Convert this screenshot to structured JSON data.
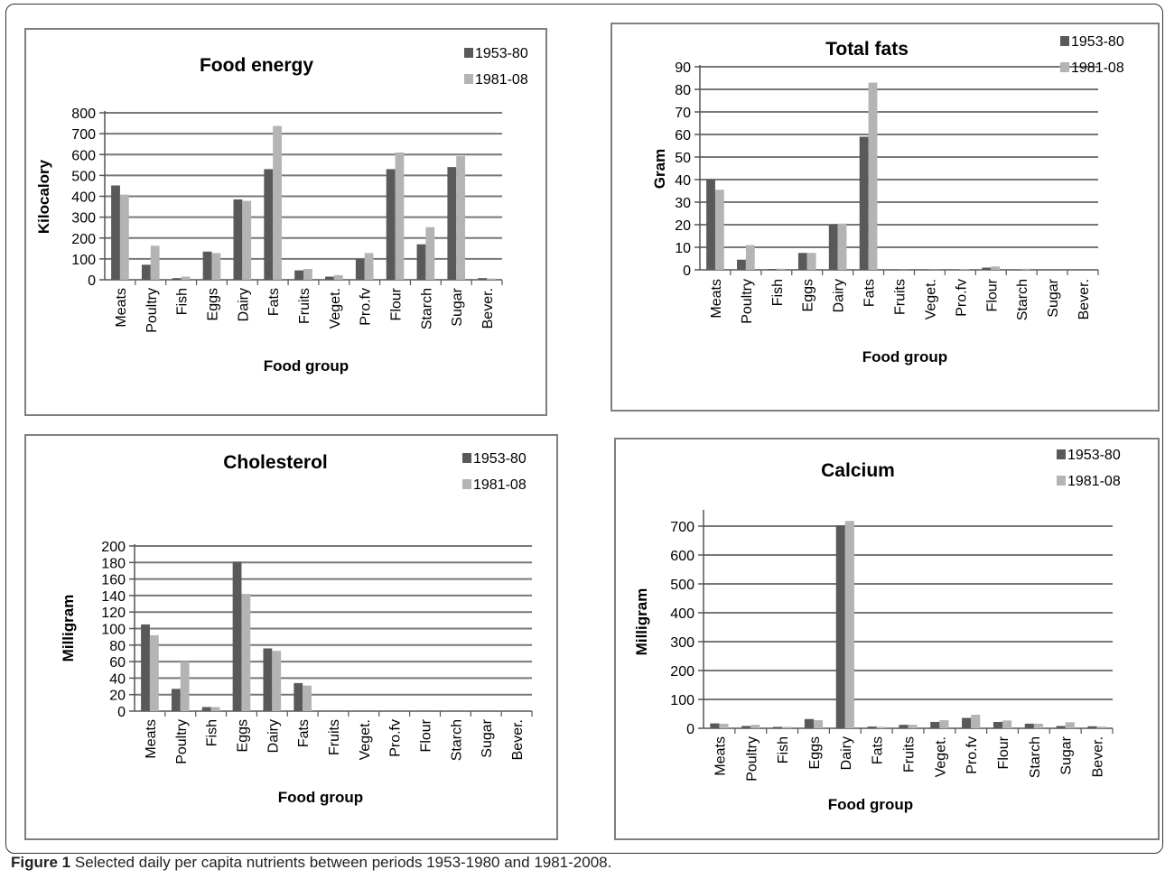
{
  "caption": {
    "label": "Figure 1",
    "text": "Selected daily per capita nutrients between periods 1953-1980 and 1981-2008."
  },
  "colors": {
    "series1": "#595959",
    "series2": "#b4b4b4",
    "grid": "#777777"
  },
  "chart_data": [
    {
      "type": "bar",
      "title": "Food energy",
      "xlabel": "Food group",
      "ylabel": "Kilocalory",
      "ylim": [
        0,
        800
      ],
      "yticks": [
        0,
        100,
        200,
        300,
        400,
        500,
        600,
        700,
        800
      ],
      "legend": "top-right",
      "grid": true,
      "categories": [
        "Meats",
        "Poultry",
        "Fish",
        "Eggs",
        "Dairy",
        "Fats",
        "Fruits",
        "Veget.",
        "Pro.fv",
        "Flour",
        "Starch",
        "Sugar",
        "Bever."
      ],
      "series": [
        {
          "name": "1953-80",
          "values": [
            452,
            72,
            8,
            135,
            385,
            530,
            45,
            15,
            100,
            530,
            170,
            540,
            8
          ]
        },
        {
          "name": "1981-08",
          "values": [
            408,
            163,
            15,
            128,
            378,
            737,
            52,
            22,
            128,
            610,
            252,
            592,
            6
          ]
        }
      ]
    },
    {
      "type": "bar",
      "title": "Total fats",
      "xlabel": "Food group",
      "ylabel": "Gram",
      "ylim": [
        0,
        90
      ],
      "yticks": [
        0,
        10,
        20,
        30,
        40,
        50,
        60,
        70,
        80,
        90
      ],
      "legend": "top-right",
      "grid": true,
      "categories": [
        "Meats",
        "Poultry",
        "Fish",
        "Eggs",
        "Dairy",
        "Fats",
        "Fruits",
        "Veget.",
        "Pro.fv",
        "Flour",
        "Starch",
        "Sugar",
        "Bever."
      ],
      "series": [
        {
          "name": "1953-80",
          "values": [
            40,
            4.5,
            0.4,
            7.5,
            20,
            59,
            0.1,
            0.1,
            0.2,
            1,
            0.2,
            0,
            0
          ]
        },
        {
          "name": "1981-08",
          "values": [
            35.5,
            11,
            0.5,
            7.5,
            20.5,
            83,
            0.1,
            0.1,
            0.3,
            1.5,
            0.5,
            0,
            0
          ]
        }
      ]
    },
    {
      "type": "bar",
      "title": "Cholesterol",
      "xlabel": "Food group",
      "ylabel": "Milligram",
      "ylim": [
        0,
        200
      ],
      "yticks": [
        0,
        20,
        40,
        60,
        80,
        100,
        120,
        140,
        160,
        180,
        200
      ],
      "legend": "top-right",
      "grid": true,
      "categories": [
        "Meats",
        "Poultry",
        "Fish",
        "Eggs",
        "Dairy",
        "Fats",
        "Fruits",
        "Veget.",
        "Pro.fv",
        "Flour",
        "Starch",
        "Sugar",
        "Bever."
      ],
      "series": [
        {
          "name": "1953-80",
          "values": [
            105,
            27,
            5,
            181,
            76,
            34,
            0,
            0,
            0,
            0,
            0,
            0,
            0
          ]
        },
        {
          "name": "1981-08",
          "values": [
            92,
            60,
            5,
            142,
            73,
            31,
            0,
            0,
            0,
            0,
            0,
            0,
            0
          ]
        }
      ]
    },
    {
      "type": "bar",
      "title": "Calcium",
      "xlabel": "Food group",
      "ylabel": "Milligram",
      "ylim": [
        0,
        750
      ],
      "yticks": [
        0,
        100,
        200,
        300,
        400,
        500,
        600,
        700
      ],
      "legend": "top-right",
      "grid": true,
      "categories": [
        "Meats",
        "Poultry",
        "Fish",
        "Eggs",
        "Dairy",
        "Fats",
        "Fruits",
        "Veget.",
        "Pro.fv",
        "Flour",
        "Starch",
        "Sugar",
        "Bever."
      ],
      "series": [
        {
          "name": "1953-80",
          "values": [
            17,
            8,
            5,
            32,
            703,
            6,
            12,
            22,
            36,
            22,
            16,
            8,
            7
          ]
        },
        {
          "name": "1981-08",
          "values": [
            16,
            12,
            5,
            28,
            718,
            5,
            12,
            28,
            47,
            27,
            16,
            21,
            6
          ]
        }
      ]
    }
  ]
}
